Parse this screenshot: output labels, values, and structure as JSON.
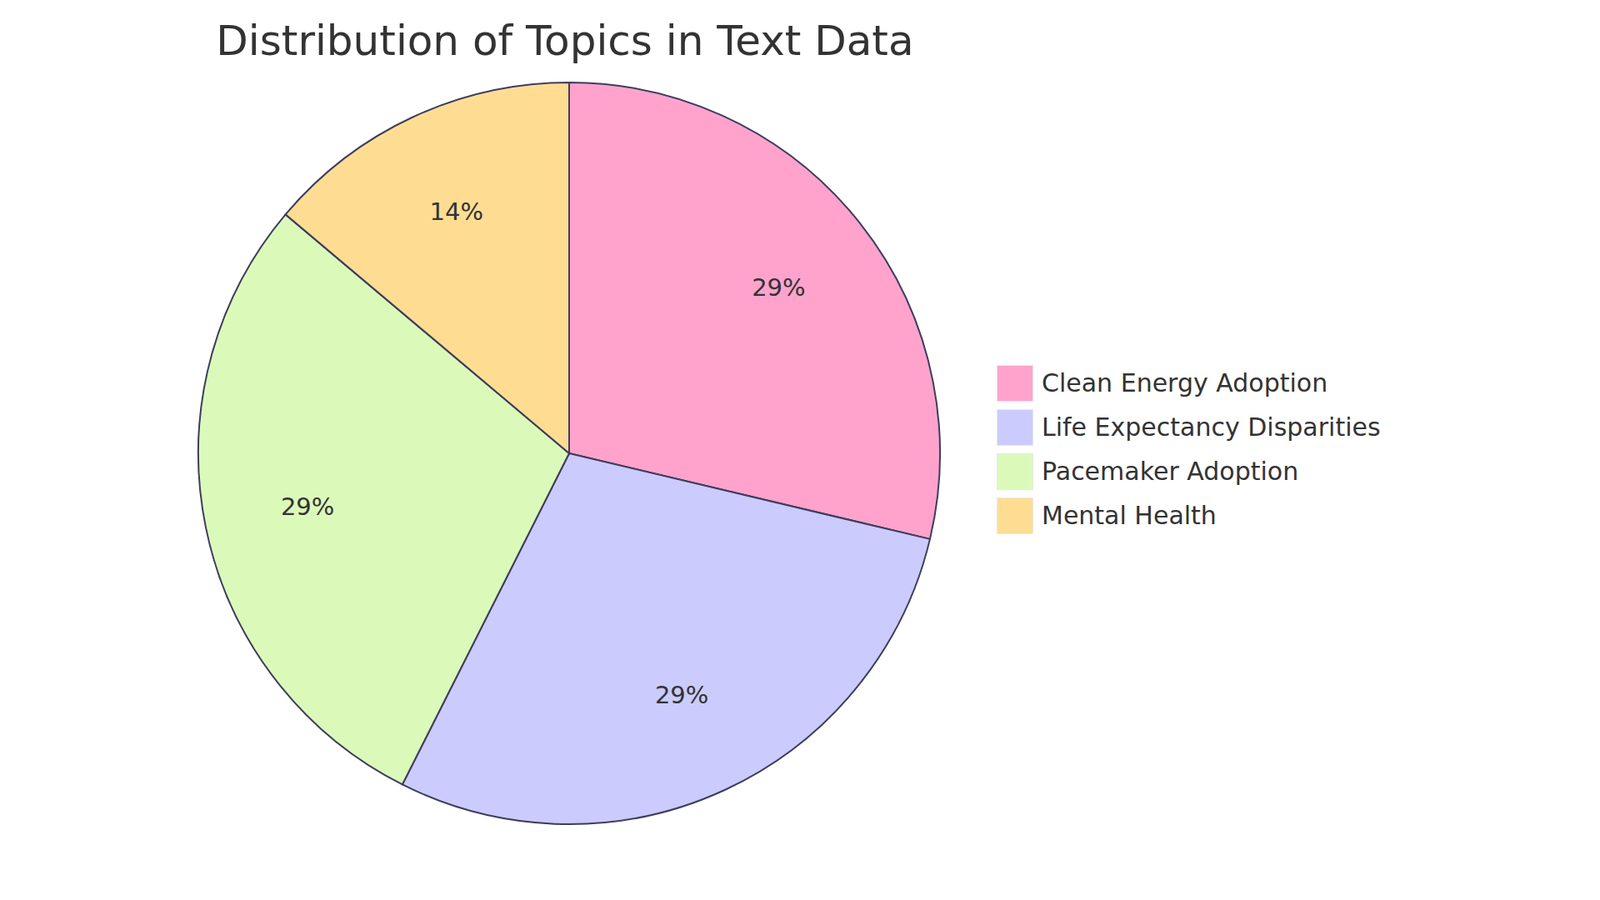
{
  "chart_data": {
    "type": "pie",
    "title": "Distribution of Topics in Text Data",
    "categories": [
      "Clean Energy Adoption",
      "Life Expectancy Disparities",
      "Pacemaker Adoption",
      "Mental Health"
    ],
    "values": [
      29,
      29,
      29,
      14
    ],
    "value_labels": [
      "29%",
      "29%",
      "29%",
      "14%"
    ],
    "colors": [
      "#FFA3CD",
      "#CBCBFE",
      "#DBFABA",
      "#FEDD93"
    ],
    "data_labels": true,
    "legend": "right"
  }
}
